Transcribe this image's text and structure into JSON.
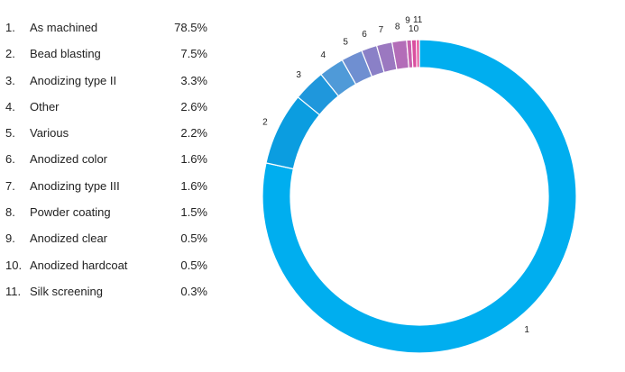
{
  "chart_data": {
    "type": "pie",
    "variant": "donut",
    "title": "",
    "categories": [
      "As machined",
      "Bead blasting",
      "Anodizing type II",
      "Other",
      "Various",
      "Anodized color",
      "Anodizing type III",
      "Powder coating",
      "Anodized clear",
      "Anodized hardcoat",
      "Silk screening"
    ],
    "numbers": [
      "1.",
      "2.",
      "3.",
      "4.",
      "5.",
      "6.",
      "7.",
      "8.",
      "9.",
      "10.",
      "11."
    ],
    "slice_labels": [
      "1",
      "2",
      "3",
      "4",
      "5",
      "6",
      "7",
      "8",
      "9",
      "10",
      "11"
    ],
    "values": [
      78.5,
      7.5,
      3.3,
      2.6,
      2.2,
      1.6,
      1.6,
      1.5,
      0.5,
      0.5,
      0.3
    ],
    "value_labels": [
      "78.5%",
      "7.5%",
      "3.3%",
      "2.6%",
      "2.2%",
      "1.6%",
      "1.6%",
      "1.5%",
      "0.5%",
      "0.5%",
      "0.3%"
    ],
    "colors": [
      "#00aeef",
      "#0b9de0",
      "#1f97dc",
      "#4f9ad8",
      "#6f8fd1",
      "#8a80c7",
      "#9b78c0",
      "#b36db8",
      "#c860ad",
      "#d9509f",
      "#e23d8f"
    ],
    "legend_position": "left"
  }
}
